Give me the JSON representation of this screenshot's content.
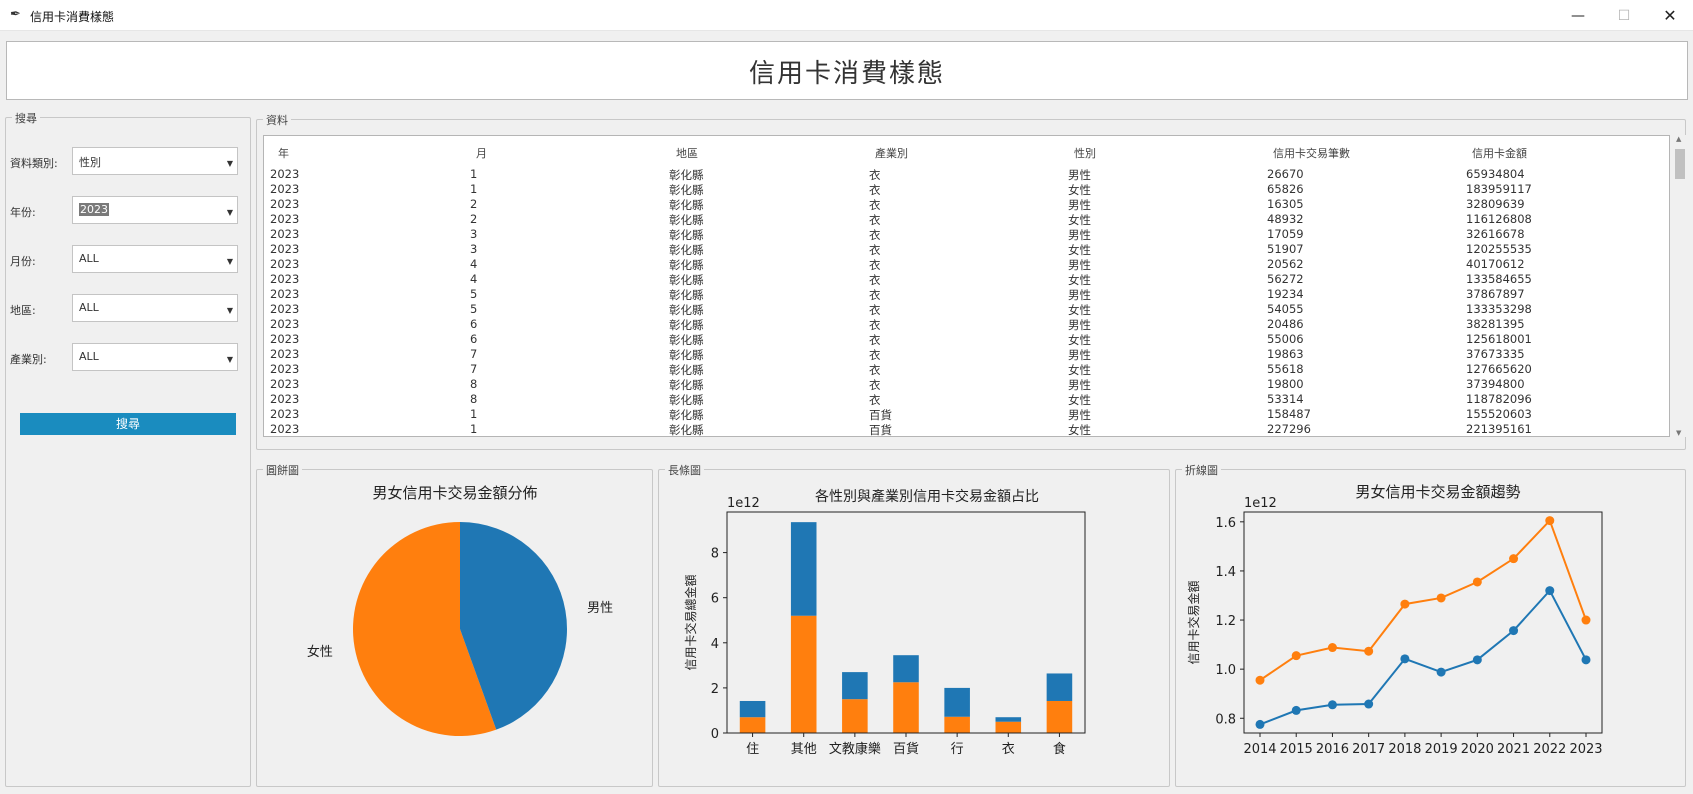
{
  "window": {
    "title": "信用卡消費樣態",
    "min_glyph": "—",
    "max_glyph": "☐",
    "close_glyph": "✕",
    "icon": "feather-icon"
  },
  "header": {
    "title": "信用卡消費樣態"
  },
  "search": {
    "legend": "搜尋",
    "fields": [
      {
        "label": "資料類別:",
        "value": "性別",
        "selected": false
      },
      {
        "label": "年份:",
        "value": "2023",
        "selected": true
      },
      {
        "label": "月份:",
        "value": "ALL",
        "selected": false
      },
      {
        "label": "地區:",
        "value": "ALL",
        "selected": false
      },
      {
        "label": "產業別:",
        "value": "ALL",
        "selected": false
      }
    ],
    "button_label": "搜尋",
    "button_color": "#1a8cbf"
  },
  "table": {
    "legend": "資料",
    "columns": [
      "年",
      "月",
      "地區",
      "產業別",
      "性別",
      "信用卡交易筆數",
      "信用卡金額"
    ],
    "rows": [
      [
        "2023",
        "1",
        "彰化縣",
        "衣",
        "男性",
        "26670",
        "65934804"
      ],
      [
        "2023",
        "1",
        "彰化縣",
        "衣",
        "女性",
        "65826",
        "183959117"
      ],
      [
        "2023",
        "2",
        "彰化縣",
        "衣",
        "男性",
        "16305",
        "32809639"
      ],
      [
        "2023",
        "2",
        "彰化縣",
        "衣",
        "女性",
        "48932",
        "116126808"
      ],
      [
        "2023",
        "3",
        "彰化縣",
        "衣",
        "男性",
        "17059",
        "32616678"
      ],
      [
        "2023",
        "3",
        "彰化縣",
        "衣",
        "女性",
        "51907",
        "120255535"
      ],
      [
        "2023",
        "4",
        "彰化縣",
        "衣",
        "男性",
        "20562",
        "40170612"
      ],
      [
        "2023",
        "4",
        "彰化縣",
        "衣",
        "女性",
        "56272",
        "133584655"
      ],
      [
        "2023",
        "5",
        "彰化縣",
        "衣",
        "男性",
        "19234",
        "37867897"
      ],
      [
        "2023",
        "5",
        "彰化縣",
        "衣",
        "女性",
        "54055",
        "133353298"
      ],
      [
        "2023",
        "6",
        "彰化縣",
        "衣",
        "男性",
        "20486",
        "38281395"
      ],
      [
        "2023",
        "6",
        "彰化縣",
        "衣",
        "女性",
        "55006",
        "125618001"
      ],
      [
        "2023",
        "7",
        "彰化縣",
        "衣",
        "男性",
        "19863",
        "37673335"
      ],
      [
        "2023",
        "7",
        "彰化縣",
        "衣",
        "女性",
        "55618",
        "127665620"
      ],
      [
        "2023",
        "8",
        "彰化縣",
        "衣",
        "男性",
        "19800",
        "37394800"
      ],
      [
        "2023",
        "8",
        "彰化縣",
        "衣",
        "女性",
        "53314",
        "118782096"
      ],
      [
        "2023",
        "1",
        "彰化縣",
        "百貨",
        "男性",
        "158487",
        "155520603"
      ],
      [
        "2023",
        "1",
        "彰化縣",
        "百貨",
        "女性",
        "227296",
        "221395161"
      ]
    ]
  },
  "colors": {
    "blue": "#1f77b4",
    "orange": "#ff7f0e"
  },
  "chart_data": [
    {
      "legend": "圓餅圖",
      "type": "pie",
      "title": "男女信用卡交易金額分佈",
      "labels": [
        "女性",
        "男性"
      ],
      "values": [
        55.5,
        44.5
      ],
      "colors": [
        "#ff7f0e",
        "#1f77b4"
      ]
    },
    {
      "legend": "長條圖",
      "type": "bar",
      "stacked": true,
      "title": "各性別與產業別信用卡交易金額占比",
      "ylabel": "信用卡交易總金額",
      "exponent_label": "1e12",
      "categories": [
        "住",
        "其他",
        "文教康樂",
        "百貨",
        "行",
        "衣",
        "食"
      ],
      "series": [
        {
          "values": [
            0.7,
            5.2,
            1.5,
            2.25,
            0.72,
            0.5,
            1.42
          ],
          "color": "#ff7f0e"
        },
        {
          "values": [
            0.72,
            4.15,
            1.2,
            1.2,
            1.28,
            0.2,
            1.22
          ],
          "color": "#1f77b4"
        }
      ],
      "ylim": [
        0,
        9.8
      ],
      "yticks": [
        0,
        2,
        4,
        6,
        8
      ]
    },
    {
      "legend": "折線圖",
      "type": "line",
      "title": "男女信用卡交易金額趨勢",
      "ylabel": "信用卡交易金額",
      "exponent_label": "1e12",
      "x": [
        "2014",
        "2015",
        "2016",
        "2017",
        "2018",
        "2019",
        "2020",
        "2021",
        "2022",
        "2023"
      ],
      "series": [
        {
          "values": [
            0.955,
            1.055,
            1.088,
            1.073,
            1.265,
            1.29,
            1.355,
            1.45,
            1.605,
            1.2
          ],
          "color": "#ff7f0e"
        },
        {
          "values": [
            0.775,
            0.832,
            0.855,
            0.858,
            1.042,
            0.988,
            1.038,
            1.157,
            1.32,
            1.038
          ],
          "color": "#1f77b4"
        }
      ],
      "ylim": [
        0.74,
        1.64
      ],
      "yticks": [
        0.8,
        1.0,
        1.2,
        1.4,
        1.6
      ]
    }
  ]
}
